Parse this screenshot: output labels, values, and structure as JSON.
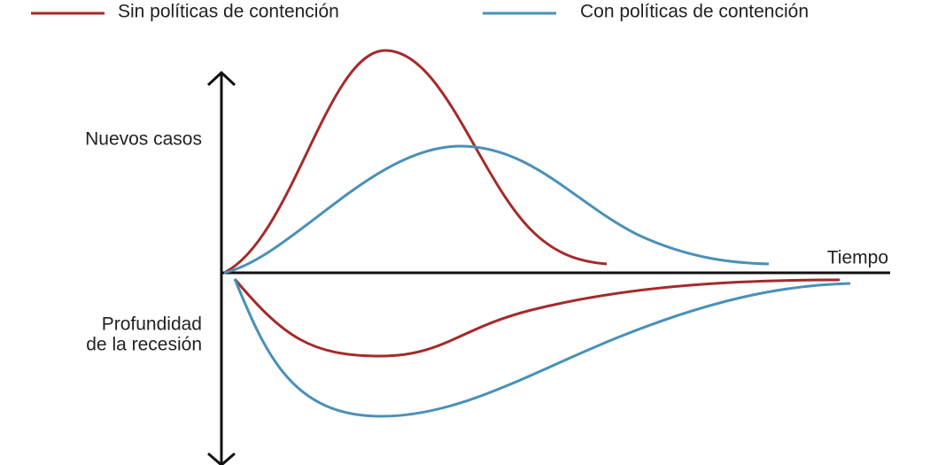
{
  "legend": [
    {
      "name": "Sin políticas de contención",
      "color": "#a52a2a"
    },
    {
      "name": "Con políticas de contención",
      "color": "#4a90b8"
    }
  ],
  "axes": {
    "y_upper_label": "Nuevos casos",
    "y_lower_label": [
      "Profundidad",
      "de la recesión"
    ],
    "x_label": "Tiempo"
  }
}
